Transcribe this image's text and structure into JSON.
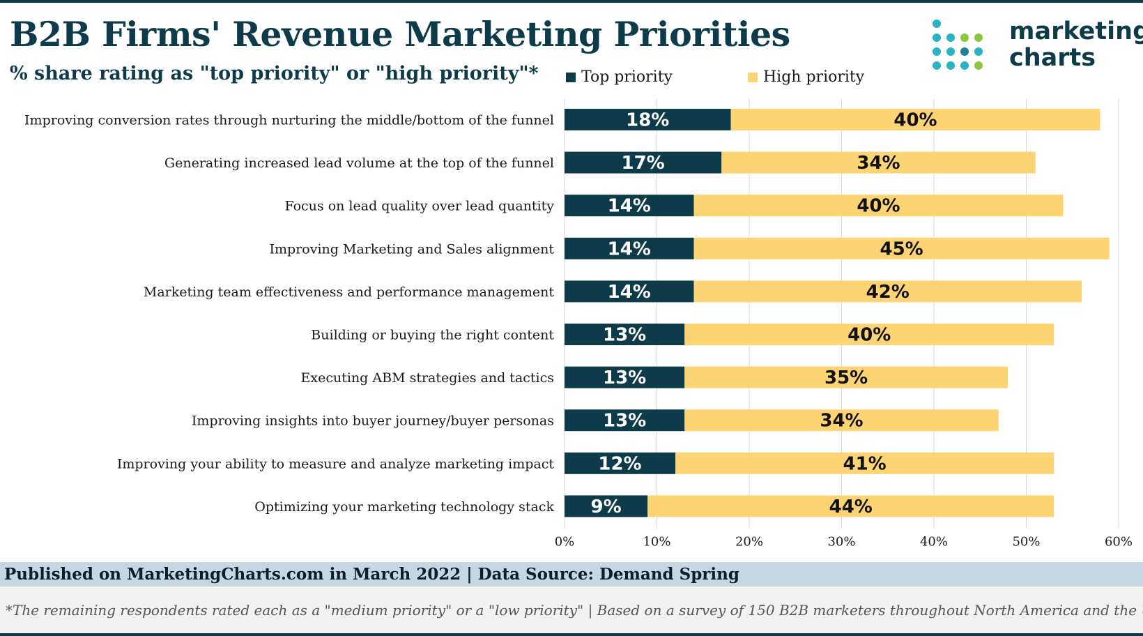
{
  "header": {
    "title": "B2B Firms' Revenue Marketing Priorities",
    "subtitle": "% share rating as \"top priority\" or \"high priority\"*"
  },
  "logo": {
    "line1": "marketing",
    "line2": "charts"
  },
  "colors": {
    "top_priority": "#0e3b4a",
    "high_priority": "#fdd473",
    "title": "#0e3b4a",
    "footer_band": "#c5d8e1"
  },
  "chart_data": {
    "type": "bar",
    "orientation": "horizontal",
    "stacked": true,
    "categories": [
      "Improving conversion rates through nurturing the middle/bottom of the funnel",
      "Generating increased lead volume at the top of the funnel",
      "Focus on lead quality over lead quantity",
      "Improving Marketing and Sales alignment",
      "Marketing team effectiveness and performance management",
      "Building or buying the right content",
      "Executing ABM strategies and tactics",
      "Improving insights into buyer journey/buyer personas",
      "Improving your ability to measure and analyze marketing impact",
      "Optimizing your marketing technology stack"
    ],
    "series": [
      {
        "name": "Top priority",
        "values": [
          18,
          17,
          14,
          14,
          14,
          13,
          13,
          13,
          12,
          9
        ]
      },
      {
        "name": "High priority",
        "values": [
          40,
          34,
          40,
          45,
          42,
          40,
          35,
          34,
          41,
          44
        ]
      }
    ],
    "xlim": [
      0,
      60
    ],
    "xticks": [
      "0%",
      "10%",
      "20%",
      "30%",
      "40%",
      "50%",
      "60%"
    ],
    "value_suffix": "%",
    "grid": true,
    "legend_position": "top"
  },
  "footer": {
    "published": "Published on MarketingCharts.com in March 2022 | Data Source: Demand Spring",
    "note": "*The remaining respondents rated each as a \"medium priority\" or a \"low priority\" | Based on a survey of 150 B2B marketers throughout North America and the UK"
  }
}
